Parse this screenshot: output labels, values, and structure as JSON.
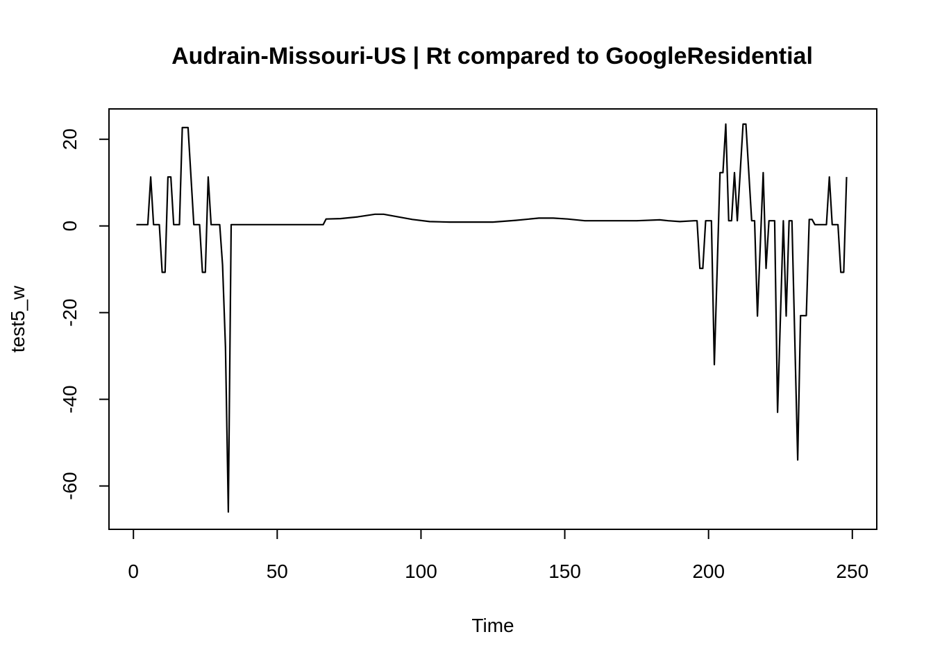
{
  "chart_data": {
    "type": "line",
    "title": "Audrain-Missouri-US | Rt compared to GoogleResidential",
    "xlabel": "Time",
    "ylabel": "test5_w",
    "xlim": [
      -8.5,
      258.5
    ],
    "ylim": [
      -70,
      27
    ],
    "x_ticks": [
      0,
      50,
      100,
      150,
      200,
      250
    ],
    "y_ticks": [
      -60,
      -40,
      -20,
      0,
      20
    ],
    "grid": false,
    "legend": "none",
    "line_color": "#000000",
    "series": [
      {
        "points": [
          [
            1,
            0.3
          ],
          [
            5,
            0.3
          ],
          [
            6,
            11.3
          ],
          [
            7,
            0.3
          ],
          [
            9,
            0.3
          ],
          [
            10,
            -10.7
          ],
          [
            11,
            -10.7
          ],
          [
            12,
            11.3
          ],
          [
            13,
            11.3
          ],
          [
            14,
            0.3
          ],
          [
            16,
            0.3
          ],
          [
            17,
            22.7
          ],
          [
            19,
            22.7
          ],
          [
            21,
            0.3
          ],
          [
            23,
            0.3
          ],
          [
            24,
            -10.7
          ],
          [
            25,
            -10.7
          ],
          [
            26,
            11.3
          ],
          [
            27,
            0.3
          ],
          [
            30,
            0.3
          ],
          [
            31,
            -9
          ],
          [
            32,
            -28
          ],
          [
            33,
            -66
          ],
          [
            34,
            0.3
          ],
          [
            66,
            0.3
          ],
          [
            67,
            1.6
          ],
          [
            72,
            1.7
          ],
          [
            78,
            2.1
          ],
          [
            84,
            2.7
          ],
          [
            87,
            2.7
          ],
          [
            92,
            2.1
          ],
          [
            97,
            1.5
          ],
          [
            103,
            1.0
          ],
          [
            110,
            0.9
          ],
          [
            125,
            0.9
          ],
          [
            133,
            1.3
          ],
          [
            141,
            1.8
          ],
          [
            146,
            1.8
          ],
          [
            151,
            1.6
          ],
          [
            157,
            1.2
          ],
          [
            165,
            1.2
          ],
          [
            175,
            1.2
          ],
          [
            183,
            1.4
          ],
          [
            186,
            1.2
          ],
          [
            190,
            1.0
          ],
          [
            195,
            1.2
          ],
          [
            196,
            1.2
          ],
          [
            197,
            -9.8
          ],
          [
            198,
            -9.8
          ],
          [
            199,
            1.2
          ],
          [
            201,
            1.2
          ],
          [
            202,
            -32
          ],
          [
            204,
            12.3
          ],
          [
            205,
            12.3
          ],
          [
            206,
            23.5
          ],
          [
            207,
            1.2
          ],
          [
            208,
            1.2
          ],
          [
            209,
            12.3
          ],
          [
            210,
            1.2
          ],
          [
            212,
            23.5
          ],
          [
            213,
            23.5
          ],
          [
            215,
            1.2
          ],
          [
            216,
            1.2
          ],
          [
            217,
            -20.8
          ],
          [
            219,
            12.3
          ],
          [
            220,
            -9.8
          ],
          [
            221,
            1.2
          ],
          [
            223,
            1.2
          ],
          [
            224,
            -43
          ],
          [
            226,
            1.2
          ],
          [
            227,
            -20.8
          ],
          [
            228,
            1.2
          ],
          [
            229,
            1.2
          ],
          [
            231,
            -54
          ],
          [
            232,
            -20.7
          ],
          [
            234,
            -20.7
          ],
          [
            235,
            1.5
          ],
          [
            236,
            1.5
          ],
          [
            237,
            0.3
          ],
          [
            241,
            0.3
          ],
          [
            242,
            11.3
          ],
          [
            243,
            0.3
          ],
          [
            245,
            0.3
          ],
          [
            246,
            -10.7
          ],
          [
            247,
            -10.7
          ],
          [
            248,
            11.3
          ]
        ]
      }
    ]
  }
}
